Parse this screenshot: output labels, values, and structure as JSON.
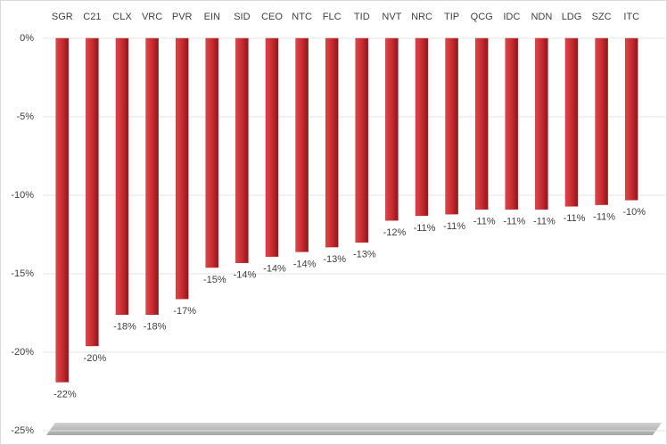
{
  "chart_data": {
    "type": "bar",
    "categories": [
      "SGR",
      "C21",
      "CLX",
      "VRC",
      "PVR",
      "EIN",
      "SID",
      "CEO",
      "NTC",
      "FLC",
      "TID",
      "NVT",
      "NRC",
      "TIP",
      "QCG",
      "IDC",
      "NDN",
      "LDG",
      "SZC",
      "ITC"
    ],
    "values": [
      -21.9,
      -19.6,
      -17.6,
      -17.6,
      -16.6,
      -14.6,
      -14.3,
      -13.9,
      -13.6,
      -13.3,
      -13.0,
      -11.6,
      -11.3,
      -11.2,
      -10.9,
      -10.9,
      -10.9,
      -10.7,
      -10.6,
      -10.3
    ],
    "value_labels": [
      "-22%",
      "-20%",
      "-18%",
      "-18%",
      "-17%",
      "-15%",
      "-14%",
      "-14%",
      "-14%",
      "-13%",
      "-13%",
      "-12%",
      "-11%",
      "-11%",
      "-11%",
      "-11%",
      "-11%",
      "-11%",
      "-11%",
      "-10%"
    ],
    "color": "#c0282d",
    "ylim": [
      -25,
      0
    ],
    "yticks": [
      {
        "value": 0,
        "label": "0%"
      },
      {
        "value": -5,
        "label": "-5%"
      },
      {
        "value": -10,
        "label": "-10%"
      },
      {
        "value": -15,
        "label": "-15%"
      },
      {
        "value": -20,
        "label": "-20%"
      },
      {
        "value": -25,
        "label": "-25%"
      }
    ],
    "grid": true
  }
}
